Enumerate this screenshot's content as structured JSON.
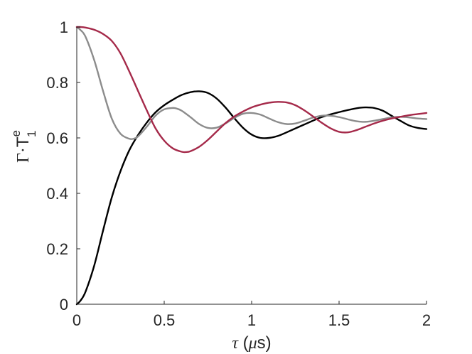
{
  "chart_data": {
    "type": "line",
    "xlabel": {
      "var": "τ",
      "unit_open": " (",
      "unit_mu": "μ",
      "unit_s": "s",
      "unit_close": ")"
    },
    "ylabel": {
      "gamma": "Γ",
      "dot": "·",
      "T": "T",
      "sup": "e",
      "sub": "1"
    },
    "xlim": [
      0,
      2
    ],
    "ylim": [
      0,
      1
    ],
    "x_ticks": [
      0,
      0.5,
      1,
      1.5,
      2
    ],
    "x_tick_labels": [
      "0",
      "0.5",
      "1",
      "1.5",
      "2"
    ],
    "y_ticks": [
      0,
      0.2,
      0.4,
      0.6,
      0.8,
      1
    ],
    "y_tick_labels": [
      "0",
      "0.2",
      "0.4",
      "0.6",
      "0.8",
      "1"
    ],
    "grid": false,
    "legend": "none",
    "series": [
      {
        "color": "#000000",
        "x": [
          0.0,
          0.02,
          0.05,
          0.1,
          0.15,
          0.2,
          0.25,
          0.3,
          0.35,
          0.4,
          0.45,
          0.5,
          0.55,
          0.6,
          0.65,
          0.7,
          0.75,
          0.8,
          0.85,
          0.9,
          0.95,
          1.0,
          1.05,
          1.1,
          1.15,
          1.2,
          1.3,
          1.4,
          1.5,
          1.6,
          1.65,
          1.7,
          1.75,
          1.8,
          1.85,
          1.9,
          1.95,
          2.0
        ],
        "y": [
          0.0,
          0.012,
          0.045,
          0.14,
          0.265,
          0.385,
          0.48,
          0.555,
          0.61,
          0.655,
          0.692,
          0.718,
          0.738,
          0.755,
          0.765,
          0.768,
          0.762,
          0.742,
          0.71,
          0.672,
          0.637,
          0.612,
          0.6,
          0.6,
          0.607,
          0.62,
          0.648,
          0.675,
          0.693,
          0.707,
          0.71,
          0.708,
          0.698,
          0.68,
          0.662,
          0.645,
          0.636,
          0.632
        ]
      },
      {
        "color": "#8c8c8c",
        "x": [
          0.0,
          0.02,
          0.05,
          0.1,
          0.15,
          0.2,
          0.25,
          0.3,
          0.325,
          0.35,
          0.4,
          0.45,
          0.5,
          0.55,
          0.575,
          0.6,
          0.65,
          0.7,
          0.75,
          0.8,
          0.85,
          0.9,
          0.95,
          1.0,
          1.05,
          1.1,
          1.15,
          1.2,
          1.25,
          1.3,
          1.35,
          1.4,
          1.45,
          1.5,
          1.55,
          1.6,
          1.65,
          1.7,
          1.75,
          1.8,
          1.85,
          1.9,
          1.95,
          2.0
        ],
        "y": [
          1.0,
          0.99,
          0.965,
          0.88,
          0.77,
          0.67,
          0.615,
          0.597,
          0.597,
          0.605,
          0.64,
          0.68,
          0.703,
          0.708,
          0.705,
          0.698,
          0.675,
          0.65,
          0.636,
          0.637,
          0.652,
          0.672,
          0.687,
          0.69,
          0.684,
          0.67,
          0.657,
          0.65,
          0.652,
          0.662,
          0.673,
          0.68,
          0.68,
          0.675,
          0.667,
          0.66,
          0.658,
          0.662,
          0.668,
          0.674,
          0.676,
          0.674,
          0.67,
          0.668
        ]
      },
      {
        "color": "#a52a4a",
        "x": [
          0.0,
          0.02,
          0.05,
          0.1,
          0.15,
          0.2,
          0.25,
          0.3,
          0.35,
          0.4,
          0.45,
          0.5,
          0.55,
          0.6,
          0.625,
          0.65,
          0.7,
          0.75,
          0.8,
          0.85,
          0.9,
          0.95,
          1.0,
          1.05,
          1.1,
          1.15,
          1.2,
          1.25,
          1.3,
          1.35,
          1.4,
          1.45,
          1.5,
          1.55,
          1.6,
          1.65,
          1.7,
          1.75,
          1.8,
          1.85,
          1.9,
          1.95,
          2.0
        ],
        "y": [
          1.0,
          1.0,
          0.998,
          0.99,
          0.975,
          0.95,
          0.905,
          0.84,
          0.77,
          0.7,
          0.635,
          0.59,
          0.562,
          0.55,
          0.549,
          0.552,
          0.568,
          0.593,
          0.623,
          0.653,
          0.677,
          0.695,
          0.71,
          0.72,
          0.727,
          0.73,
          0.728,
          0.718,
          0.7,
          0.678,
          0.655,
          0.635,
          0.622,
          0.62,
          0.628,
          0.64,
          0.652,
          0.662,
          0.67,
          0.676,
          0.682,
          0.686,
          0.69
        ]
      }
    ]
  }
}
